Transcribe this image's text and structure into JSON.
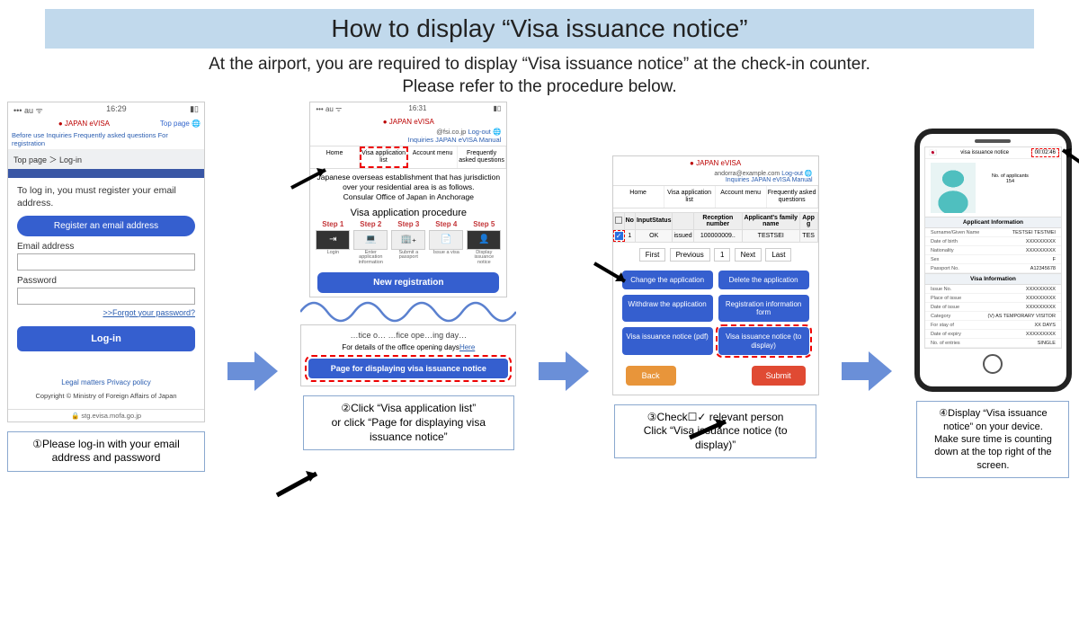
{
  "title": "How to display “Visa issuance notice”",
  "subtitle": "At the airport, you are required to display  “Visa issuance notice” at the check-in counter.\nPlease refer to the procedure below.",
  "colors": {
    "titleBg": "#c1d9ec",
    "arrow": "#6a8fd8",
    "primaryBtn": "#355fcf",
    "highlight": "#e00000",
    "back": "#e8953a",
    "submit": "#e04a33"
  },
  "screen1": {
    "statusTime": "16:29",
    "brand": "JAPAN eVISA",
    "topPage": "Top page",
    "navlinks": "Before use   Inquiries   Frequently asked questions   For registration",
    "breadcrumb": "Top page ＞ Log-in",
    "intro": "To log in, you must register your email address.",
    "registerBtn": "Register an email address",
    "emailLabel": "Email address",
    "passwordLabel": "Password",
    "forgot": ">>Forgot your password?",
    "login": "Log-in",
    "footerLinks": "Legal matters   Privacy policy",
    "copyright": "Copyright © Ministry of Foreign Affairs of Japan",
    "url": "🔒 stg.evisa.mofa.go.jp"
  },
  "screen2": {
    "statusTime": "16:31",
    "brand": "JAPAN eVISA",
    "user": "@fsi.co.jp",
    "logout": "Log-out",
    "smalllinks": "Inquiries   JAPAN eVISA Manual",
    "tabs": [
      "Home",
      "Visa application list",
      "Account menu",
      "Frequently asked questions"
    ],
    "para": "Japanese overseas establishment that has jurisdiction over your residential area is as follows.\nConsular Office of Japan in Anchorage",
    "procTitle": "Visa application procedure",
    "steps": [
      "Step 1",
      "Step 2",
      "Step 3",
      "Step 4",
      "Step 5"
    ],
    "stepLabels": [
      "Login",
      "Enter application information",
      "Submit a passport",
      "Issue a visa",
      "Display issuance notice"
    ],
    "newReg": "New registration",
    "snippet": {
      "t1": "…tice o… …fice ope…ing day…",
      "t2pre": "For details of the office opening days",
      "t2link": "Here",
      "pageBtn": "Page for displaying visa issuance notice"
    }
  },
  "screen3": {
    "brand": "JAPAN eVISA",
    "user": "andorra@example.com",
    "logout": "Log-out",
    "smalllinks": "Inquiries   JAPAN eVISA Manual",
    "tabs": [
      "Home",
      "Visa application list",
      "Account menu",
      "Frequently asked questions"
    ],
    "headers": [
      "",
      "No",
      "InputStatus",
      "",
      "Reception number",
      "Applicant's family name",
      "App g"
    ],
    "row": [
      "✓",
      "1",
      "OK",
      "issued",
      "100000009..",
      "TESTSEI",
      "TES"
    ],
    "pager": [
      "First",
      "Previous",
      "1",
      "Next",
      "Last"
    ],
    "grid": [
      "Change the application",
      "Delete the application",
      "Withdraw the application",
      "Registration information form",
      "Visa issuance notice (pdf)",
      "Visa issuance notice (to display)"
    ],
    "back": "Back",
    "submit": "Submit"
  },
  "screen4": {
    "header": "visa issuance notice",
    "timer": "00:02:46",
    "noApplicants": "No. of applicants",
    "noApplicantsVal": "154",
    "sect1": "Applicant Information",
    "info1": [
      [
        "Surname/Given Name",
        "TESTSEI TESTMEI"
      ],
      [
        "Date of birth",
        "XXXXXXXXX"
      ],
      [
        "Nationality",
        "XXXXXXXXX"
      ],
      [
        "Sex",
        "F"
      ],
      [
        "Passport No.",
        "A12345678"
      ]
    ],
    "sect2": "Visa Information",
    "info2": [
      [
        "Issue No.",
        "XXXXXXXXX"
      ],
      [
        "Place of issue",
        "XXXXXXXXX"
      ],
      [
        "Date of issue",
        "XXXXXXXXX"
      ],
      [
        "Category",
        "(V) AS TEMPORARY VISITOR"
      ],
      [
        "For stay of",
        "XX DAYS"
      ],
      [
        "Date of expiry",
        "XXXXXXXXX"
      ],
      [
        "No. of entries",
        "SINGLE"
      ]
    ]
  },
  "captions": [
    "①Please log-in with your email address and password",
    "②Click “Visa application list”\nor click “Page for displaying visa issuance notice”",
    "③Check☐✓ relevant person\nClick “Visa issuance notice (to display)”",
    "④Display “Visa issuance notice” on your device.\nMake sure time is counting down at the top right of the screen."
  ]
}
